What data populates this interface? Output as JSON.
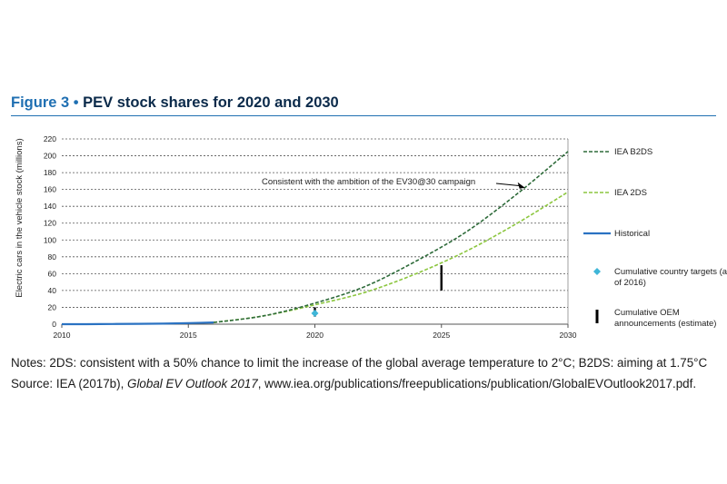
{
  "figure": {
    "number": "Figure 3",
    "bullet": "•",
    "title": "PEV stock shares for 2020 and 2030"
  },
  "notes": "Notes: 2DS: consistent with a 50% chance to limit the increase of the global average temperature to 2°C; B2DS: aiming at 1.75°C",
  "source": {
    "prefix": "Source: IEA (2017b), ",
    "italic": "Global EV Outlook 2017",
    "suffix": ", www.iea.org/publications/freepublications/publication/GlobalEVOutlook2017.pdf."
  },
  "colors": {
    "b2ds": "#2e6b3a",
    "twods": "#8cc63f",
    "historical": "#2a72c2",
    "targets": "#3fb6d8",
    "oem": "#000000",
    "grid": "#555555"
  },
  "chart_data": {
    "type": "line",
    "ylabel": "Electric cars in the vehicle stock (millions)",
    "xlim": [
      2010,
      2030
    ],
    "ylim": [
      0,
      220
    ],
    "xticks": [
      2010,
      2015,
      2020,
      2025,
      2030
    ],
    "yticks": [
      0,
      20,
      40,
      60,
      80,
      100,
      120,
      140,
      160,
      180,
      200,
      220
    ],
    "grid": "horizontal dashed",
    "legend_position": "right",
    "series": [
      {
        "name": "IEA B2DS",
        "style": "dashed",
        "x": [
          2016,
          2018,
          2020,
          2022,
          2024,
          2026,
          2028,
          2030
        ],
        "y": [
          2,
          10,
          25,
          45,
          75,
          110,
          155,
          205
        ]
      },
      {
        "name": "IEA 2DS",
        "style": "dashed",
        "x": [
          2016,
          2018,
          2020,
          2022,
          2024,
          2026,
          2028,
          2030
        ],
        "y": [
          2,
          10,
          23,
          38,
          60,
          87,
          120,
          157
        ]
      },
      {
        "name": "Historical",
        "style": "solid",
        "x": [
          2010,
          2011,
          2012,
          2013,
          2014,
          2015,
          2016
        ],
        "y": [
          0,
          0.05,
          0.2,
          0.4,
          0.7,
          1.3,
          2
        ]
      }
    ],
    "markers": [
      {
        "name": "Cumulative country targets (as of 2016)",
        "shape": "diamond",
        "x": 2020,
        "y": 13
      }
    ],
    "ranges": [
      {
        "name": "Cumulative OEM announcements (estimate)",
        "x": 2020,
        "y_low": 9,
        "y_high": 20
      },
      {
        "name": "Cumulative OEM announcements (estimate)",
        "x": 2025,
        "y_low": 40,
        "y_high": 70
      }
    ],
    "annotation": {
      "text": "Consistent with the ambition of the EV30@30 campaign",
      "target_x": 2028.3,
      "target_y": 162
    },
    "legend": {
      "b2ds": "IEA B2DS",
      "twods": "IEA 2DS",
      "historical": "Historical",
      "targets_line1": "Cumulative country targets (as",
      "targets_line2": "of 2016)",
      "oem_line1": "Cumulative OEM",
      "oem_line2": "announcements (estimate)"
    }
  }
}
